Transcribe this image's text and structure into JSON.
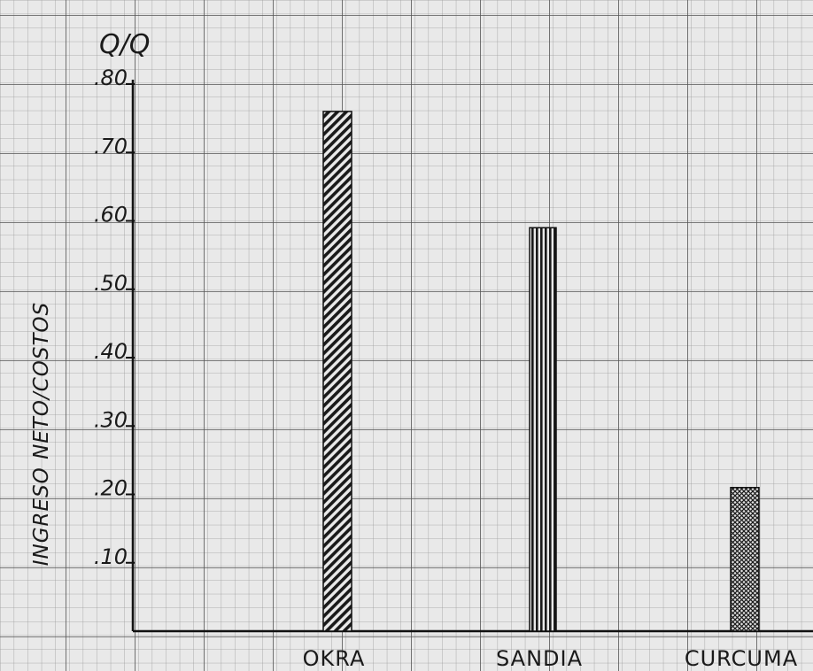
{
  "chart_data": {
    "type": "bar",
    "unit_label": "Q/Q",
    "ylabel": "INGRESO NETO/COSTOS",
    "xlabel": "",
    "categories": [
      "OKRA",
      "SANDIA",
      "CURCUMA"
    ],
    "values": [
      0.76,
      0.59,
      0.21
    ],
    "ylim": [
      0,
      0.8
    ],
    "yticks": [
      0.1,
      0.2,
      0.3,
      0.4,
      0.5,
      0.6,
      0.7,
      0.8
    ],
    "ytick_labels": [
      ".10",
      ".20",
      ".30",
      ".40",
      ".50",
      ".60",
      ".70",
      ".80"
    ],
    "bar_patterns": [
      "diagonal-hatch",
      "vertical-lines",
      "crosshatch"
    ],
    "grid": true,
    "legend": "none"
  }
}
